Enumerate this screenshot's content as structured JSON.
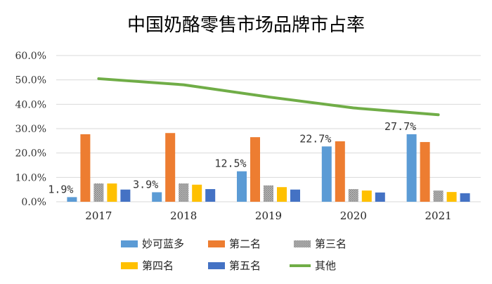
{
  "chart_data": {
    "type": "bar",
    "title": "中国奶酪零售市场品牌市占率",
    "categories": [
      "2017",
      "2018",
      "2019",
      "2020",
      "2021"
    ],
    "ylim": [
      0,
      60
    ],
    "yticks": [
      "0.0%",
      "10.0%",
      "20.0%",
      "30.0%",
      "40.0%",
      "50.0%",
      "60.0%"
    ],
    "grid": true,
    "legend_position": "bottom",
    "series": [
      {
        "name": "妙可蓝多",
        "type": "bar",
        "color": "#5b9bd5",
        "pattern": "solid",
        "values": [
          1.9,
          3.9,
          12.5,
          22.7,
          27.7
        ],
        "labels": [
          "1.9%",
          "3.9%",
          "12.5%",
          "22.7%",
          "27.7%"
        ]
      },
      {
        "name": "第二名",
        "type": "bar",
        "color": "#ed7d31",
        "pattern": "solid",
        "values": [
          27.7,
          28.2,
          26.5,
          24.8,
          24.5
        ]
      },
      {
        "name": "第三名",
        "type": "bar",
        "color": "#a5a5a5",
        "pattern": "dotted",
        "values": [
          7.5,
          7.5,
          6.7,
          5.2,
          4.6
        ]
      },
      {
        "name": "第四名",
        "type": "bar",
        "color": "#ffc000",
        "pattern": "solid",
        "values": [
          7.5,
          7.0,
          6.0,
          4.6,
          4.0
        ]
      },
      {
        "name": "第五名",
        "type": "bar",
        "color": "#4472c4",
        "pattern": "solid",
        "values": [
          5.0,
          5.2,
          5.0,
          3.8,
          3.5
        ]
      },
      {
        "name": "其他",
        "type": "line",
        "color": "#70ad47",
        "values": [
          50.5,
          48.0,
          43.0,
          38.5,
          35.7
        ]
      }
    ]
  }
}
